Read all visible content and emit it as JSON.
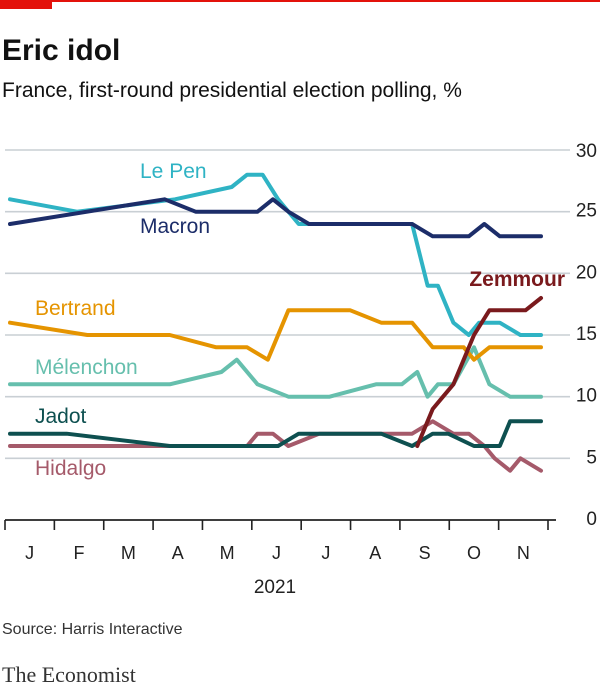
{
  "brand": {
    "name": "The Economist",
    "accent_color": "#e3120b"
  },
  "source": "Source: Harris Interactive",
  "chart_data": {
    "type": "line",
    "title": "Eric idol",
    "subtitle": "France, first-round presidential election polling, %",
    "xlabel": "2021",
    "ylabel": "",
    "ylim": [
      0,
      30
    ],
    "yticks": [
      0,
      5,
      10,
      15,
      20,
      25,
      30
    ],
    "xlim": [
      0,
      10.3
    ],
    "months": [
      "J",
      "F",
      "M",
      "A",
      "M",
      "J",
      "J",
      "A",
      "S",
      "O",
      "N"
    ],
    "grid": true,
    "series": [
      {
        "name": "Le Pen",
        "color": "#2fb3c4",
        "x": [
          0,
          1.3,
          3.2,
          4.3,
          4.6,
          4.9,
          5.2,
          5.6,
          6.3,
          7.8,
          8.1,
          8.3,
          8.6,
          8.9,
          9.1,
          9.5,
          9.9,
          10.3
        ],
        "y": [
          26,
          25,
          26,
          27,
          28,
          28,
          26,
          24,
          24,
          24,
          19,
          19,
          16,
          15,
          16,
          16,
          15,
          15
        ]
      },
      {
        "name": "Macron",
        "color": "#1c2d69",
        "x": [
          0,
          3.0,
          3.6,
          4.8,
          5.1,
          5.4,
          5.8,
          6.5,
          7.2,
          7.8,
          8.2,
          8.9,
          9.2,
          9.5,
          9.8,
          10.3
        ],
        "y": [
          24,
          26,
          25,
          25,
          26,
          25,
          24,
          24,
          24,
          24,
          23,
          23,
          24,
          23,
          23,
          23
        ]
      },
      {
        "name": "Bertrand",
        "color": "#e59400",
        "x": [
          0,
          1.5,
          3.1,
          4.0,
          4.6,
          5.0,
          5.4,
          5.8,
          6.6,
          7.2,
          7.8,
          8.2,
          8.8,
          9.0,
          9.3,
          10.3
        ],
        "y": [
          16,
          15,
          15,
          14,
          14,
          13,
          17,
          17,
          17,
          16,
          16,
          14,
          14,
          13,
          14,
          14
        ]
      },
      {
        "name": "Mélenchon",
        "color": "#66bfad",
        "x": [
          0,
          1.0,
          3.1,
          4.1,
          4.4,
          4.8,
          5.4,
          6.2,
          7.1,
          7.6,
          7.9,
          8.1,
          8.3,
          8.6,
          9.0,
          9.3,
          9.7,
          10.3
        ],
        "y": [
          11,
          11,
          11,
          12,
          13,
          11,
          10,
          10,
          11,
          11,
          12,
          10,
          11,
          11,
          14,
          11,
          10,
          10
        ]
      },
      {
        "name": "Jadot",
        "color": "#0e5050",
        "x": [
          0,
          1.1,
          3.1,
          4.2,
          4.8,
          5.2,
          5.6,
          6.2,
          7.2,
          7.8,
          8.2,
          8.5,
          9.0,
          9.5,
          9.7,
          10.3
        ],
        "y": [
          7,
          7,
          6,
          6,
          6,
          6,
          7,
          7,
          7,
          6,
          7,
          7,
          6,
          6,
          8,
          8
        ]
      },
      {
        "name": "Hidalgo",
        "color": "#a55a6a",
        "x": [
          0,
          1.2,
          3.1,
          4.1,
          4.4,
          4.6,
          4.8,
          5.1,
          5.4,
          6.0,
          7.2,
          7.8,
          8.2,
          8.6,
          8.9,
          9.2,
          9.4,
          9.7,
          9.9,
          10.3
        ],
        "y": [
          6,
          6,
          6,
          6,
          6,
          6,
          7,
          7,
          6,
          7,
          7,
          7,
          8,
          7,
          7,
          6,
          5,
          4,
          5,
          4
        ]
      },
      {
        "name": "Zemmour",
        "color": "#7a1a1d",
        "x": [
          7.9,
          8.0,
          8.2,
          8.4,
          8.6,
          8.8,
          9.0,
          9.3,
          9.7,
          10.0,
          10.3
        ],
        "y": [
          6,
          7,
          9,
          10,
          11,
          13,
          15,
          17,
          17,
          17,
          18
        ]
      }
    ]
  }
}
